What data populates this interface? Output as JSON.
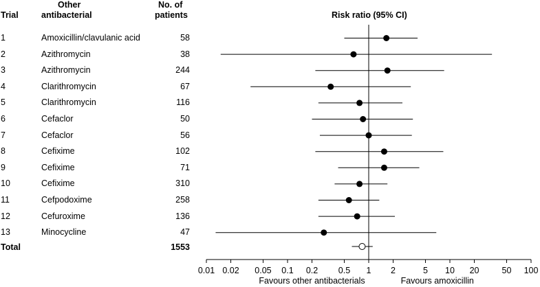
{
  "headers": {
    "trial": "Trial",
    "other_line1": "Other",
    "other_line2": "antibacterial",
    "patients_line1": "No. of",
    "patients_line2": "patients",
    "risk": "Risk ratio (95% CI)"
  },
  "chart_data": {
    "type": "forest",
    "title": "Risk ratio (95% CI)",
    "scale": "log",
    "xlim": [
      0.01,
      100
    ],
    "reference_line": 1,
    "ticks": [
      0.01,
      0.02,
      0.05,
      0.1,
      0.2,
      0.5,
      1,
      2,
      5,
      10,
      20,
      50,
      100
    ],
    "tick_labels": [
      "0.01",
      "0.02",
      "0.05",
      "0.1",
      "0.2",
      "0.5",
      "1",
      "2",
      "5",
      "10",
      "20",
      "50",
      "100"
    ],
    "xlabel_left": "Favours other antibacterials",
    "xlabel_right": "Favours amoxicillin",
    "rows": [
      {
        "trial": "1",
        "drug": "Amoxicillin/clavulanic acid",
        "patients": "58",
        "rr": 1.65,
        "lo": 0.5,
        "hi": 4.0
      },
      {
        "trial": "2",
        "drug": "Azithromycin",
        "patients": "38",
        "rr": 0.65,
        "lo": 0.015,
        "hi": 33
      },
      {
        "trial": "3",
        "drug": "Azithromycin",
        "patients": "244",
        "rr": 1.7,
        "lo": 0.22,
        "hi": 8.5
      },
      {
        "trial": "4",
        "drug": "Clarithromycin",
        "patients": "67",
        "rr": 0.34,
        "lo": 0.035,
        "hi": 3.3
      },
      {
        "trial": "5",
        "drug": "Clarithromycin",
        "patients": "116",
        "rr": 0.77,
        "lo": 0.24,
        "hi": 2.6
      },
      {
        "trial": "6",
        "drug": "Cefaclor",
        "patients": "50",
        "rr": 0.85,
        "lo": 0.2,
        "hi": 3.5
      },
      {
        "trial": "7",
        "drug": "Cefaclor",
        "patients": "56",
        "rr": 1.0,
        "lo": 0.25,
        "hi": 3.4
      },
      {
        "trial": "8",
        "drug": "Cefixime",
        "patients": "102",
        "rr": 1.55,
        "lo": 0.22,
        "hi": 8.3
      },
      {
        "trial": "9",
        "drug": "Cefixime",
        "patients": "71",
        "rr": 1.55,
        "lo": 0.42,
        "hi": 4.2
      },
      {
        "trial": "10",
        "drug": "Cefixime",
        "patients": "310",
        "rr": 0.77,
        "lo": 0.38,
        "hi": 1.7
      },
      {
        "trial": "11",
        "drug": "Cefpodoxime",
        "patients": "258",
        "rr": 0.57,
        "lo": 0.24,
        "hi": 1.35
      },
      {
        "trial": "12",
        "drug": "Cefuroxime",
        "patients": "136",
        "rr": 0.72,
        "lo": 0.24,
        "hi": 2.1
      },
      {
        "trial": "13",
        "drug": "Minocycline",
        "patients": "47",
        "rr": 0.28,
        "lo": 0.013,
        "hi": 6.8
      }
    ],
    "total": {
      "label": "Total",
      "patients": "1553",
      "rr": 0.83,
      "lo": 0.62,
      "hi": 1.12
    }
  }
}
